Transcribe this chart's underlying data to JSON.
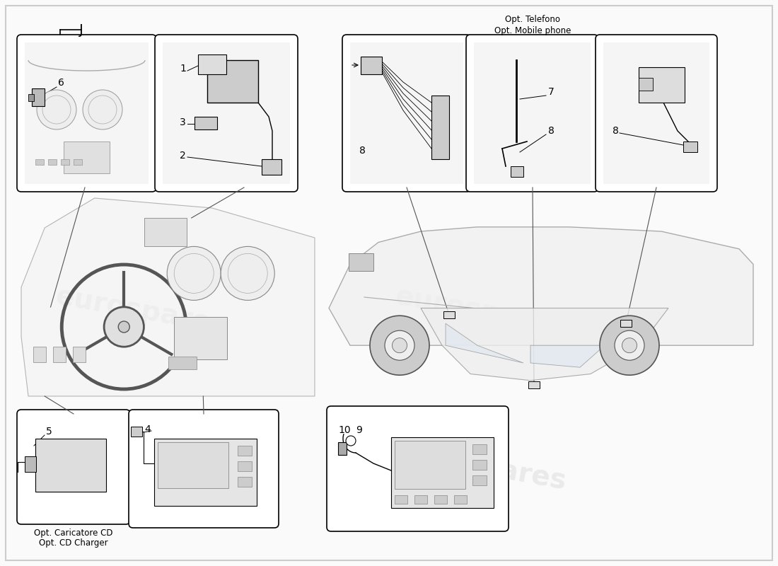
{
  "bg": "#FAFAFA",
  "white": "#FFFFFF",
  "black": "#000000",
  "gray_light": "#DDDDDD",
  "gray_mid": "#BBBBBB",
  "gray_dark": "#888888",
  "watermark": "eurospares",
  "wm_color": "#DDDDDD",
  "wm_alpha": 0.55,
  "label_J": "J",
  "opt_telefono": "Opt. Telefono",
  "opt_mobile": "Opt. Mobile phone",
  "opt_cd_it": "Opt. Caricatore CD",
  "opt_cd_en": "Opt. CD Charger",
  "labels": {
    "1": "1",
    "2": "2",
    "3": "3",
    "4": "4",
    "5": "5",
    "6": "6",
    "7": "7",
    "8": "8",
    "9": "9",
    "10": "10"
  }
}
